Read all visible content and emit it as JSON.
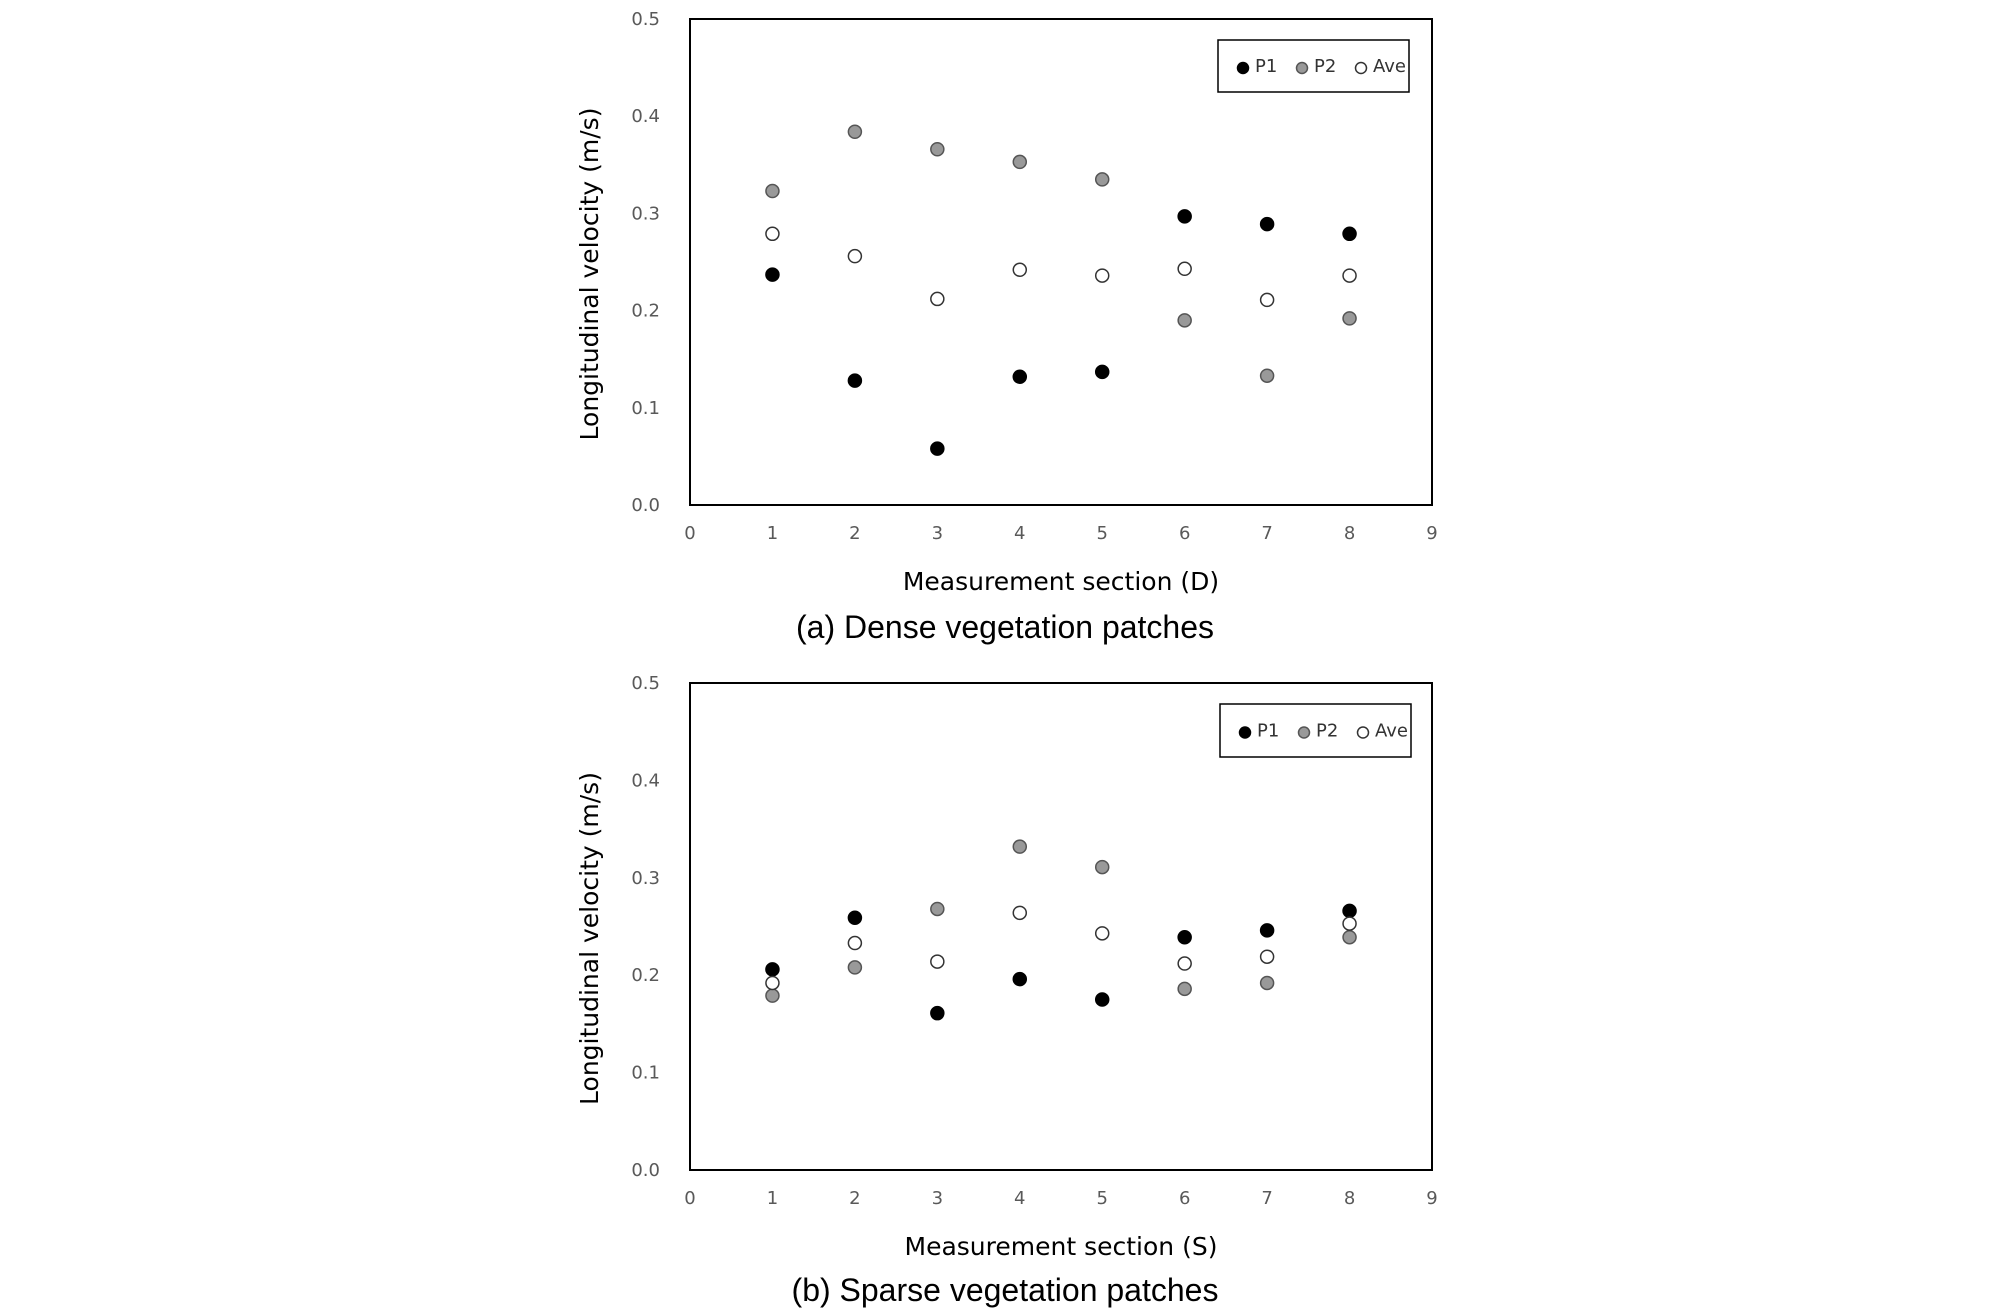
{
  "chart_data": [
    {
      "type": "scatter",
      "caption": "(a) Dense vegetation patches",
      "xlabel": "Measurement section (D)",
      "ylabel": "Longitudinal velocity (m/s)",
      "xlim": [
        0,
        9
      ],
      "ylim": [
        0,
        0.5
      ],
      "xticks": [
        "0",
        "1",
        "2",
        "3",
        "4",
        "5",
        "6",
        "7",
        "8",
        "9"
      ],
      "yticks": [
        "0.0",
        "0.1",
        "0.2",
        "0.3",
        "0.4",
        "0.5"
      ],
      "grid": false,
      "legend_position": "top-right",
      "x": [
        1,
        2,
        3,
        4,
        5,
        6,
        7,
        8
      ],
      "series": [
        {
          "name": "P1",
          "color": "#000000",
          "values": [
            0.237,
            0.128,
            0.058,
            0.132,
            0.137,
            0.297,
            0.289,
            0.279
          ]
        },
        {
          "name": "P2",
          "color": "#999999",
          "values": [
            0.323,
            0.384,
            0.366,
            0.353,
            0.335,
            0.19,
            0.133,
            0.192
          ]
        },
        {
          "name": "Ave",
          "color": "#ffffff",
          "values": [
            0.279,
            0.256,
            0.212,
            0.242,
            0.236,
            0.243,
            0.211,
            0.236
          ]
        }
      ]
    },
    {
      "type": "scatter",
      "caption": "(b) Sparse vegetation patches",
      "xlabel": "Measurement section (S)",
      "ylabel": "Longitudinal velocity (m/s)",
      "xlim": [
        0,
        9
      ],
      "ylim": [
        0,
        0.5
      ],
      "xticks": [
        "0",
        "1",
        "2",
        "3",
        "4",
        "5",
        "6",
        "7",
        "8",
        "9"
      ],
      "yticks": [
        "0.0",
        "0.1",
        "0.2",
        "0.3",
        "0.4",
        "0.5"
      ],
      "grid": false,
      "legend_position": "top-right",
      "x": [
        1,
        2,
        3,
        4,
        5,
        6,
        7,
        8
      ],
      "series": [
        {
          "name": "P1",
          "color": "#000000",
          "values": [
            0.206,
            0.259,
            0.161,
            0.196,
            0.175,
            0.239,
            0.246,
            0.266
          ]
        },
        {
          "name": "P2",
          "color": "#999999",
          "values": [
            0.179,
            0.208,
            0.268,
            0.332,
            0.311,
            0.186,
            0.192,
            0.239
          ]
        },
        {
          "name": "Ave",
          "color": "#ffffff",
          "values": [
            0.192,
            0.233,
            0.214,
            0.264,
            0.243,
            0.212,
            0.219,
            0.253
          ]
        }
      ]
    }
  ]
}
